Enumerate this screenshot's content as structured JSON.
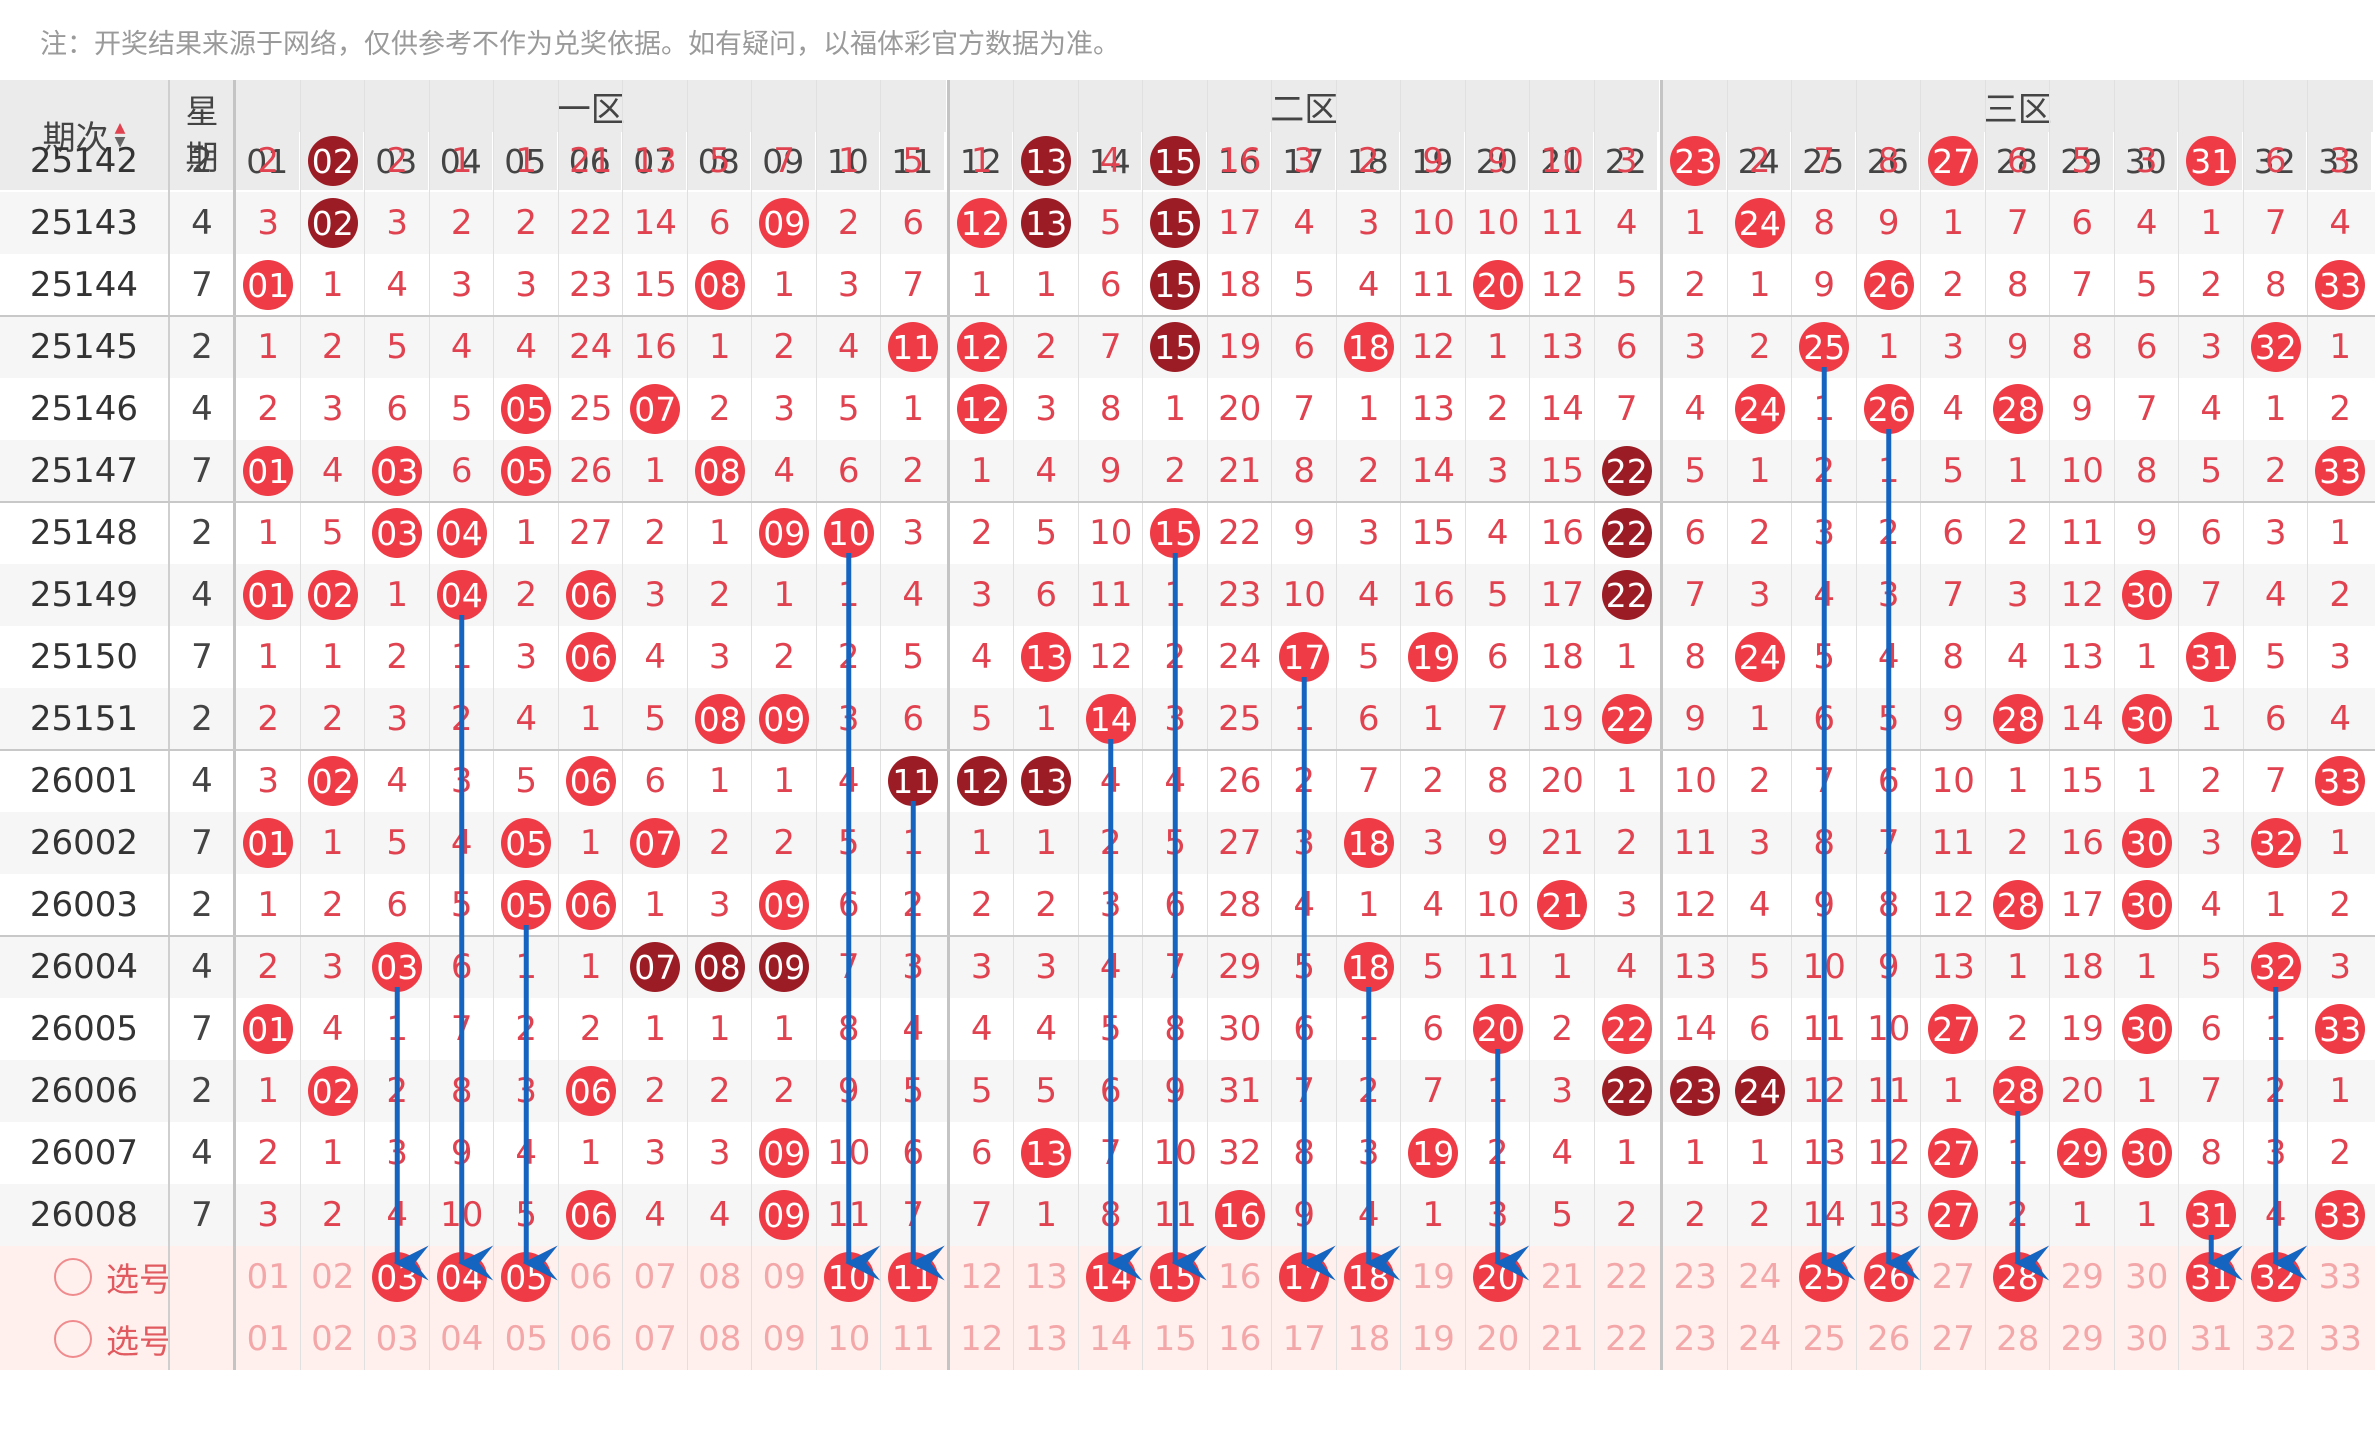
{
  "note": "注：开奖结果来源于网络，仅供参考不作为兑奖依据。如有疑问，以福体彩官方数据为准。",
  "header": {
    "period_label": "期次",
    "week_label_1": "星",
    "week_label_2": "期",
    "zones": [
      "一区",
      "二区",
      "三区"
    ],
    "numbers": [
      "01",
      "02",
      "03",
      "04",
      "05",
      "06",
      "07",
      "08",
      "09",
      "10",
      "11",
      "12",
      "13",
      "14",
      "15",
      "16",
      "17",
      "18",
      "19",
      "20",
      "21",
      "22",
      "23",
      "24",
      "25",
      "26",
      "27",
      "28",
      "29",
      "30",
      "31",
      "32",
      "33"
    ]
  },
  "rows": [
    {
      "period": "25142",
      "week": "2",
      "cells": [
        "2",
        "02",
        "2",
        "1",
        "1",
        "21",
        "13",
        "5",
        "7",
        "1",
        "5",
        "1",
        "13",
        "4",
        "15",
        "16",
        "3",
        "2",
        "9",
        "9",
        "10",
        "3",
        "23",
        "2",
        "7",
        "8",
        "27",
        "6",
        "5",
        "3",
        "31",
        "6",
        "3"
      ],
      "balls": {
        "2": "dark",
        "13": "dark",
        "15": "dark",
        "23": "red",
        "27": "red",
        "31": "red"
      }
    },
    {
      "period": "25143",
      "week": "4",
      "cells": [
        "3",
        "02",
        "3",
        "2",
        "2",
        "22",
        "14",
        "6",
        "09",
        "2",
        "6",
        "12",
        "13",
        "5",
        "15",
        "17",
        "4",
        "3",
        "10",
        "10",
        "11",
        "4",
        "1",
        "24",
        "8",
        "9",
        "1",
        "7",
        "6",
        "4",
        "1",
        "7",
        "4"
      ],
      "balls": {
        "2": "dark",
        "9": "red",
        "12": "red",
        "13": "dark",
        "15": "dark",
        "24": "red"
      }
    },
    {
      "period": "25144",
      "week": "7",
      "cells": [
        "01",
        "1",
        "4",
        "3",
        "3",
        "23",
        "15",
        "08",
        "1",
        "3",
        "7",
        "1",
        "1",
        "6",
        "15",
        "18",
        "5",
        "4",
        "11",
        "20",
        "12",
        "5",
        "2",
        "1",
        "9",
        "26",
        "2",
        "8",
        "7",
        "5",
        "2",
        "8",
        "33"
      ],
      "balls": {
        "1": "red",
        "8": "red",
        "15": "dark",
        "20": "red",
        "26": "red",
        "33": "red"
      }
    },
    {
      "period": "25145",
      "week": "2",
      "cells": [
        "1",
        "2",
        "5",
        "4",
        "4",
        "24",
        "16",
        "1",
        "2",
        "4",
        "11",
        "12",
        "2",
        "7",
        "15",
        "19",
        "6",
        "18",
        "12",
        "1",
        "13",
        "6",
        "3",
        "2",
        "25",
        "1",
        "3",
        "9",
        "8",
        "6",
        "3",
        "32",
        "1"
      ],
      "balls": {
        "11": "red",
        "12": "red",
        "15": "dark",
        "18": "red",
        "25": "red",
        "32": "red"
      }
    },
    {
      "period": "25146",
      "week": "4",
      "cells": [
        "2",
        "3",
        "6",
        "5",
        "05",
        "25",
        "07",
        "2",
        "3",
        "5",
        "1",
        "12",
        "3",
        "8",
        "1",
        "20",
        "7",
        "1",
        "13",
        "2",
        "14",
        "7",
        "4",
        "24",
        "1",
        "26",
        "4",
        "28",
        "9",
        "7",
        "4",
        "1",
        "2"
      ],
      "balls": {
        "5": "red",
        "7": "red",
        "12": "red",
        "24": "red",
        "26": "red",
        "28": "red"
      }
    },
    {
      "period": "25147",
      "week": "7",
      "cells": [
        "01",
        "4",
        "03",
        "6",
        "05",
        "26",
        "1",
        "08",
        "4",
        "6",
        "2",
        "1",
        "4",
        "9",
        "2",
        "21",
        "8",
        "2",
        "14",
        "3",
        "15",
        "22",
        "5",
        "1",
        "2",
        "1",
        "5",
        "1",
        "10",
        "8",
        "5",
        "2",
        "33"
      ],
      "balls": {
        "1": "red",
        "3": "red",
        "5": "red",
        "8": "red",
        "22": "dark",
        "33": "red"
      }
    },
    {
      "period": "25148",
      "week": "2",
      "cells": [
        "1",
        "5",
        "03",
        "04",
        "1",
        "27",
        "2",
        "1",
        "09",
        "10",
        "3",
        "2",
        "5",
        "10",
        "15",
        "22",
        "9",
        "3",
        "15",
        "4",
        "16",
        "22",
        "6",
        "2",
        "3",
        "2",
        "6",
        "2",
        "11",
        "9",
        "6",
        "3",
        "1"
      ],
      "balls": {
        "3": "red",
        "4": "red",
        "9": "red",
        "10": "red",
        "15": "red",
        "22": "dark"
      }
    },
    {
      "period": "25149",
      "week": "4",
      "cells": [
        "01",
        "02",
        "1",
        "04",
        "2",
        "06",
        "3",
        "2",
        "1",
        "1",
        "4",
        "3",
        "6",
        "11",
        "1",
        "23",
        "10",
        "4",
        "16",
        "5",
        "17",
        "22",
        "7",
        "3",
        "4",
        "3",
        "7",
        "3",
        "12",
        "30",
        "7",
        "4",
        "2"
      ],
      "balls": {
        "1": "red",
        "2": "red",
        "4": "red",
        "6": "red",
        "22": "dark",
        "30": "red"
      }
    },
    {
      "period": "25150",
      "week": "7",
      "cells": [
        "1",
        "1",
        "2",
        "1",
        "3",
        "06",
        "4",
        "3",
        "2",
        "2",
        "5",
        "4",
        "13",
        "12",
        "2",
        "24",
        "17",
        "5",
        "19",
        "6",
        "18",
        "1",
        "8",
        "24",
        "5",
        "4",
        "8",
        "4",
        "13",
        "1",
        "31",
        "5",
        "3"
      ],
      "balls": {
        "6": "red",
        "13": "red",
        "17": "red",
        "19": "red",
        "24": "red",
        "31": "red"
      }
    },
    {
      "period": "25151",
      "week": "2",
      "cells": [
        "2",
        "2",
        "3",
        "2",
        "4",
        "1",
        "5",
        "08",
        "09",
        "3",
        "6",
        "5",
        "1",
        "14",
        "3",
        "25",
        "1",
        "6",
        "1",
        "7",
        "19",
        "22",
        "9",
        "1",
        "6",
        "5",
        "9",
        "28",
        "14",
        "30",
        "1",
        "6",
        "4"
      ],
      "balls": {
        "8": "red",
        "9": "red",
        "14": "red",
        "22": "red",
        "28": "red",
        "30": "red"
      }
    },
    {
      "period": "26001",
      "week": "4",
      "cells": [
        "3",
        "02",
        "4",
        "3",
        "5",
        "06",
        "6",
        "1",
        "1",
        "4",
        "11",
        "12",
        "13",
        "4",
        "4",
        "26",
        "2",
        "7",
        "2",
        "8",
        "20",
        "1",
        "10",
        "2",
        "7",
        "6",
        "10",
        "1",
        "15",
        "1",
        "2",
        "7",
        "33"
      ],
      "balls": {
        "2": "red",
        "6": "red",
        "11": "dark",
        "12": "dark",
        "13": "dark",
        "33": "red"
      }
    },
    {
      "period": "26002",
      "week": "7",
      "cells": [
        "01",
        "1",
        "5",
        "4",
        "05",
        "1",
        "07",
        "2",
        "2",
        "5",
        "1",
        "1",
        "1",
        "2",
        "5",
        "27",
        "3",
        "18",
        "3",
        "9",
        "21",
        "2",
        "11",
        "3",
        "8",
        "7",
        "11",
        "2",
        "16",
        "30",
        "3",
        "32",
        "1"
      ],
      "balls": {
        "1": "red",
        "5": "red",
        "7": "red",
        "18": "red",
        "30": "red",
        "32": "red"
      }
    },
    {
      "period": "26003",
      "week": "2",
      "cells": [
        "1",
        "2",
        "6",
        "5",
        "05",
        "06",
        "1",
        "3",
        "09",
        "6",
        "2",
        "2",
        "2",
        "3",
        "6",
        "28",
        "4",
        "1",
        "4",
        "10",
        "21",
        "3",
        "12",
        "4",
        "9",
        "8",
        "12",
        "28",
        "17",
        "30",
        "4",
        "1",
        "2"
      ],
      "balls": {
        "5": "red",
        "6": "red",
        "9": "red",
        "21": "red",
        "28": "red",
        "30": "red"
      }
    },
    {
      "period": "26004",
      "week": "4",
      "cells": [
        "2",
        "3",
        "03",
        "6",
        "1",
        "1",
        "07",
        "08",
        "09",
        "7",
        "3",
        "3",
        "3",
        "4",
        "7",
        "29",
        "5",
        "18",
        "5",
        "11",
        "1",
        "4",
        "13",
        "5",
        "10",
        "9",
        "13",
        "1",
        "18",
        "1",
        "5",
        "32",
        "3"
      ],
      "balls": {
        "3": "red",
        "7": "dark",
        "8": "dark",
        "9": "dark",
        "18": "red",
        "32": "red"
      }
    },
    {
      "period": "26005",
      "week": "7",
      "cells": [
        "01",
        "4",
        "1",
        "7",
        "2",
        "2",
        "1",
        "1",
        "1",
        "8",
        "4",
        "4",
        "4",
        "5",
        "8",
        "30",
        "6",
        "1",
        "6",
        "20",
        "2",
        "22",
        "14",
        "6",
        "11",
        "10",
        "27",
        "2",
        "19",
        "30",
        "6",
        "1",
        "33"
      ],
      "balls": {
        "1": "red",
        "20": "red",
        "22": "red",
        "27": "red",
        "30": "red",
        "33": "red"
      }
    },
    {
      "period": "26006",
      "week": "2",
      "cells": [
        "1",
        "02",
        "2",
        "8",
        "3",
        "06",
        "2",
        "2",
        "2",
        "9",
        "5",
        "5",
        "5",
        "6",
        "9",
        "31",
        "7",
        "2",
        "7",
        "1",
        "3",
        "22",
        "23",
        "24",
        "12",
        "11",
        "1",
        "28",
        "20",
        "1",
        "7",
        "2",
        "1"
      ],
      "balls": {
        "2": "red",
        "6": "red",
        "22": "dark",
        "23": "dark",
        "24": "dark",
        "28": "red"
      }
    },
    {
      "period": "26007",
      "week": "4",
      "cells": [
        "2",
        "1",
        "3",
        "9",
        "4",
        "1",
        "3",
        "3",
        "09",
        "10",
        "6",
        "6",
        "13",
        "7",
        "10",
        "32",
        "8",
        "3",
        "19",
        "2",
        "4",
        "1",
        "1",
        "1",
        "13",
        "12",
        "27",
        "1",
        "29",
        "30",
        "8",
        "3",
        "2"
      ],
      "balls": {
        "9": "red",
        "13": "red",
        "19": "red",
        "27": "red",
        "29": "red",
        "30": "red"
      }
    },
    {
      "period": "26008",
      "week": "7",
      "cells": [
        "3",
        "2",
        "4",
        "10",
        "5",
        "06",
        "4",
        "4",
        "09",
        "11",
        "7",
        "7",
        "1",
        "8",
        "11",
        "16",
        "9",
        "4",
        "1",
        "3",
        "5",
        "2",
        "2",
        "2",
        "14",
        "13",
        "27",
        "2",
        "1",
        "1",
        "31",
        "4",
        "33"
      ],
      "balls": {
        "6": "red",
        "9": "red",
        "16": "red",
        "27": "red",
        "31": "red",
        "33": "red"
      }
    }
  ],
  "pick_rows": [
    {
      "label": "选号",
      "selected": [
        "03",
        "04",
        "05",
        "10",
        "11",
        "14",
        "15",
        "17",
        "18",
        "20",
        "25",
        "26",
        "28",
        "31",
        "32"
      ]
    },
    {
      "label": "选号",
      "selected": []
    }
  ],
  "colors": {
    "ball_red": "#ee3b45",
    "ball_dark": "#9c1c25",
    "text_red": "#e0424f",
    "arrow": "#1565c0"
  },
  "icons": {
    "sort": "sort-updown-icon",
    "radio": "radio-icon",
    "arrow": "down-arrow-icon"
  }
}
